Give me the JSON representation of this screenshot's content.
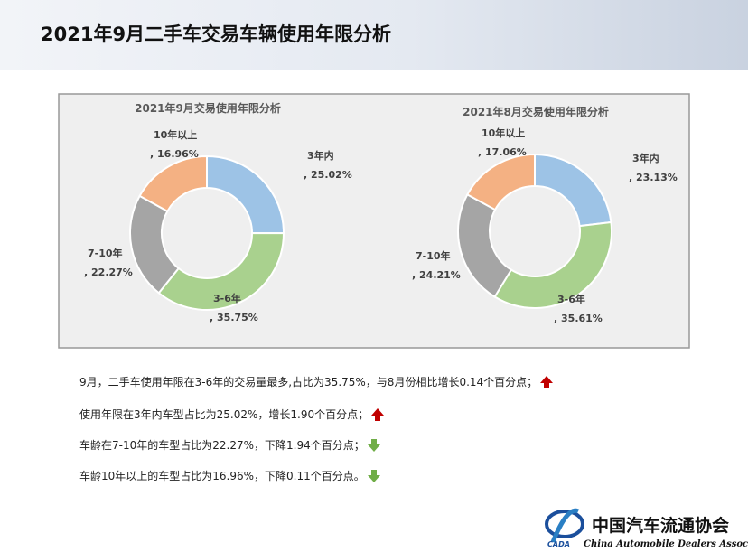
{
  "header": {
    "title": "2021年9月二手车交易车辆使用年限分析"
  },
  "chart_data": [
    {
      "type": "pie",
      "title": "2021年9月交易使用年限分析",
      "categories": [
        "3年内",
        "3-6年",
        "7-10年",
        "10年以上"
      ],
      "values": [
        25.02,
        35.75,
        22.27,
        16.96
      ],
      "value_labels": [
        ", 25.02%",
        ", 35.75%",
        ", 22.27%",
        ", 16.96%"
      ],
      "colors": [
        "#9dc3e6",
        "#a9d18e",
        "#a5a5a5",
        "#f4b183"
      ]
    },
    {
      "type": "pie",
      "title": "2021年8月交易使用年限分析",
      "categories": [
        "3年内",
        "3-6年",
        "7-10年",
        "10年以上"
      ],
      "values": [
        23.13,
        35.61,
        24.21,
        17.06
      ],
      "value_labels": [
        ", 23.13%",
        ", 35.61%",
        ", 24.21%",
        ", 17.06%"
      ],
      "colors": [
        "#9dc3e6",
        "#a9d18e",
        "#a5a5a5",
        "#f4b183"
      ]
    }
  ],
  "notes": [
    "9月，二手车使用年限在3-6年的交易量最多,占比为35.75%，与8月份相比增长0.14个百分点；",
    "使用年限在3年内车型占比为25.02%，增长1.90个百分点；",
    "车龄在7-10年的车型占比为22.27%，下降1.94个百分点；",
    "车龄10年以上的车型占比为16.96%，下降0.11个百分点。"
  ],
  "logo": {
    "name": "中国汽车流通协会",
    "english": "China Automobile Dealers Association",
    "abbr": "CADA"
  }
}
